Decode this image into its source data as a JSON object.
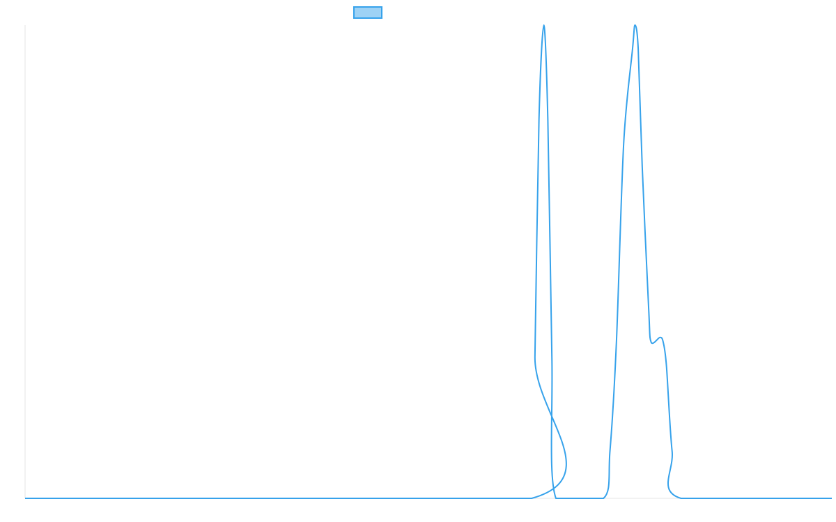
{
  "chart_data": {
    "type": "line",
    "title": "",
    "xlabel": "",
    "ylabel": "",
    "legend": {
      "placement": "top-center",
      "entries": [
        {
          "label": "",
          "fill_color": "#9ed2f5",
          "stroke_color": "#36a2eb"
        }
      ]
    },
    "grid": false,
    "x_ticks_visible": false,
    "y_ticks_visible": false,
    "xlim": [
      0,
      100
    ],
    "ylim": [
      0,
      1
    ],
    "series": [
      {
        "color": "#36a2eb",
        "fill": false,
        "points": [
          [
            0,
            0
          ],
          [
            62.8,
            0
          ],
          [
            63.2,
            0.3
          ],
          [
            63.7,
            0.8
          ],
          [
            64.3,
            1.0
          ],
          [
            64.8,
            0.8
          ],
          [
            65.3,
            0.3
          ],
          [
            65.8,
            0
          ],
          [
            71.7,
            0
          ],
          [
            72.5,
            0.1
          ],
          [
            73.3,
            0.33
          ],
          [
            74.2,
            0.75
          ],
          [
            75.3,
            0.95
          ],
          [
            75.6,
            1.0
          ],
          [
            76.0,
            0.95
          ],
          [
            76.5,
            0.7
          ],
          [
            77.3,
            0.4
          ],
          [
            77.6,
            0.33
          ],
          [
            78.7,
            0.34
          ],
          [
            79.1,
            0.33
          ],
          [
            79.5,
            0.28
          ],
          [
            80.2,
            0.1
          ],
          [
            81.3,
            0
          ],
          [
            100,
            0
          ]
        ]
      }
    ]
  }
}
